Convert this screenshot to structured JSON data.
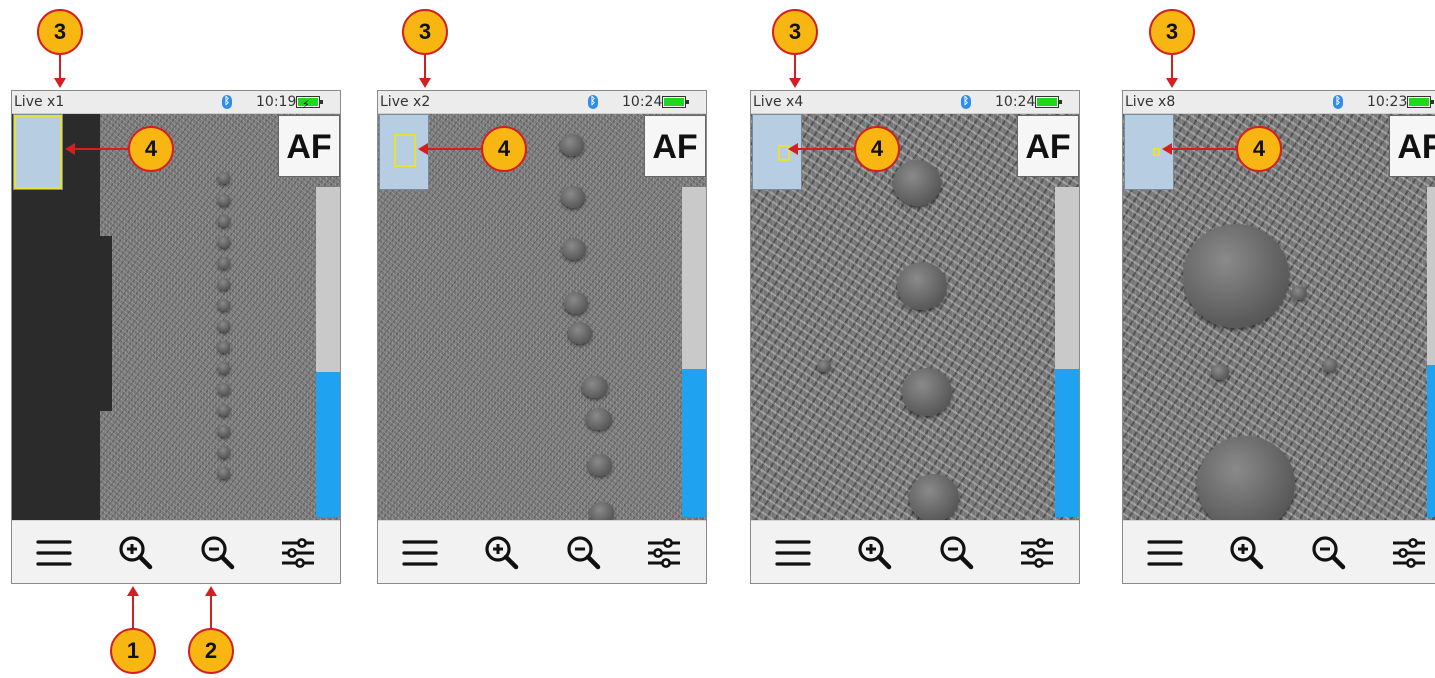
{
  "screens": [
    {
      "mode": "Live x1",
      "time": "10:19",
      "charging": true,
      "af_label": "AF",
      "focus_level": 0.44
    },
    {
      "mode": "Live x2",
      "time": "10:24",
      "charging": false,
      "af_label": "AF",
      "focus_level": 0.45
    },
    {
      "mode": "Live x4",
      "time": "10:24",
      "charging": false,
      "af_label": "AF",
      "focus_level": 0.45
    },
    {
      "mode": "Live x8",
      "time": "10:23",
      "charging": false,
      "af_label": "AF",
      "focus_level": 0.46
    }
  ],
  "toolbar_icons": [
    "menu-icon",
    "zoom-in-icon",
    "zoom-out-icon",
    "settings-sliders-icon"
  ],
  "callouts": {
    "zoom_in": "1",
    "zoom_out": "2",
    "mode": "3",
    "roi": "4"
  },
  "colors": {
    "callout_fill": "#f7b611",
    "arrow": "#d31f1f",
    "focus_bar": "#1fa3f0",
    "roi": "#e6e13a",
    "battery": "#1ed81e",
    "bluetooth": "#2e8df0"
  }
}
